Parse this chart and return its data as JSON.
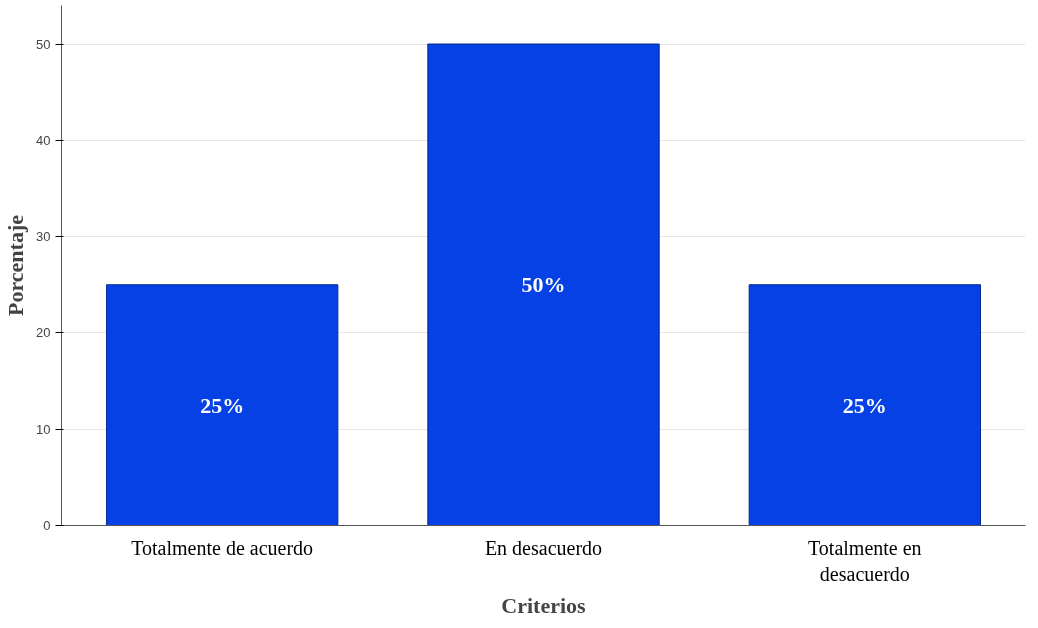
{
  "chart_data": {
    "type": "bar",
    "xlabel": "Criterios",
    "ylabel": "Porcentaje",
    "categories": [
      "Totalmente de acuerdo",
      "En desacuerdo",
      "Totalmente en desacuerdo"
    ],
    "values": [
      25,
      50,
      25
    ],
    "color": "#0541e5",
    "value_labels": [
      "25%",
      "50%",
      "25%"
    ],
    "ylim": [
      0,
      54
    ],
    "yticks": [
      0,
      10,
      20,
      30,
      40,
      50
    ],
    "grid": "y"
  }
}
